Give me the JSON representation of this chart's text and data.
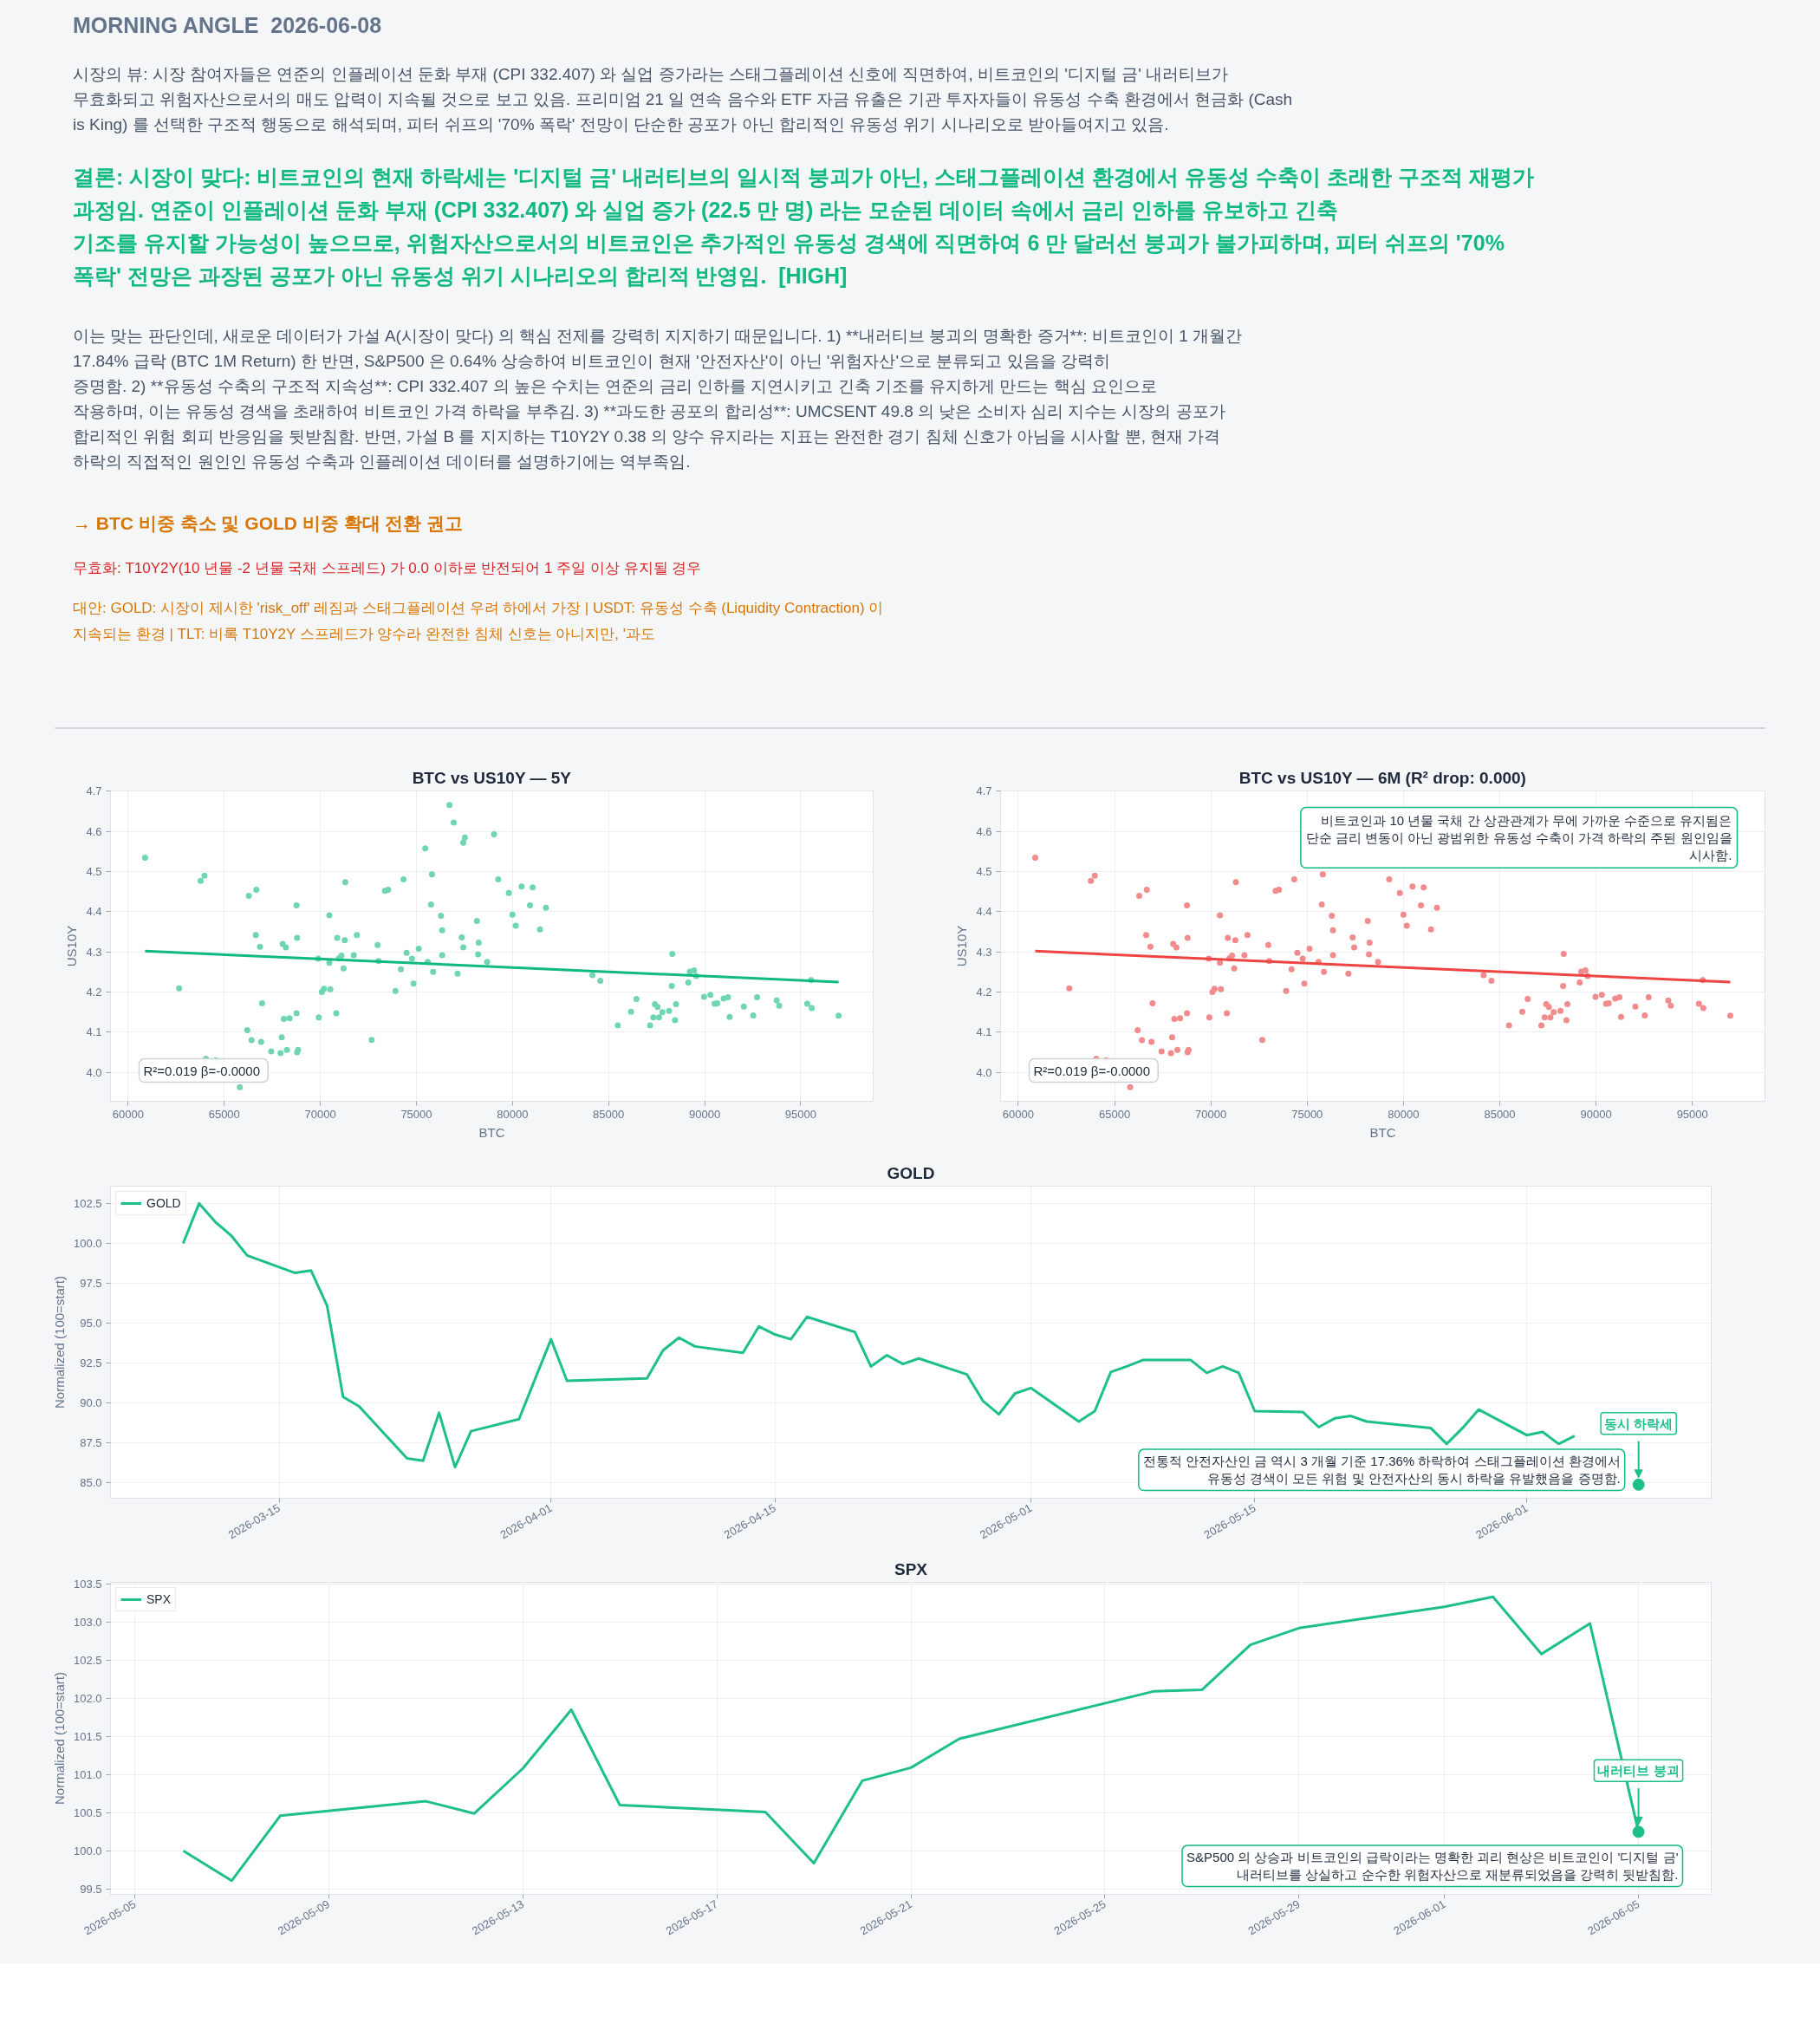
{
  "chart_data": [
    {
      "type": "other",
      "title": "MORNING ANGLE  2026-06-08",
      "annotations": [
        "시장의 뷰: 시장 참여자들은 연준의 인플레이션 둔화 부재 (CPI 332.407) 와 실업 증가라는 스태그플레이션 신호에 직면하여, 비트코인의 '디지털 금' 내러티브가 무효화되고 위험자산으로서의 매도 압력이 지속될 것으로 보고 있음. 프리미엄 21 일 연속 음수와 ETF 자금 유출은 기관 투자자들이 유동성 수축 환경에서 현금화 (Cash is King) 를 선택한 구조적 행동으로 해석되며, 피터 쉬프의 '70% 폭락' 전망이 단순한 공포가 아닌 합리적인 유동성 위기 시나리오로 받아들여지고 있음.",
        "결론: 시장이 맞다: 비트코인의 현재 하락세는 '디지털 금' 내러티브의 일시적 붕괴가 아닌, 스태그플레이션 환경에서 유동성 수축이 초래한 구조적 재평가 과정임. 연준이 인플레이션 둔화 부재 (CPI 332.407) 와 실업 증가 (22.5 만 명) 라는 모순된 데이터 속에서 금리 인하를 유보하고 긴축 기조를 유지할 가능성이 높으므로, 위험자산으로서의 비트코인은 추가적인 유동성 경색에 직면하여 6 만 달러선 붕괴가 불가피하며, 피터 쉬프의 '70% 폭락' 전망은 과장된 공포가 아닌 유동성 위기 시나리오의 합리적 반영임.  [HIGH]",
        "이는 맞는 판단인데, 새로운 데이터가 가설 A(시장이 맞다) 의 핵심 전제를 강력히 지지하기 때문입니다. 1) **내러티브 붕괴의 명확한 증거**: 비트코인이 1 개월간 17.84% 급락 (BTC 1M Return) 한 반면, S&P500 은 0.64% 상승하여 비트코인이 현재 '안전자산'이 아닌 '위험자산'으로 분류되고 있음을 강력히 증명함. 2) **유동성 수축의 구조적 지속성**: CPI 332.407 의 높은 수치는 연준의 금리 인하를 지연시키고 긴축 기조를 유지하게 만드는 핵심 요인으로 작용하며, 이는 유동성 경색을 초래하여 비트코인 가격 하락을 부추김. 3) **과도한 공포의 합리성**: UMCSENT 49.8 의 낮은 소비자 심리 지수는 시장의 공포가 합리적인 위험 회피 반응임을 뒷받침함. 반면, 가설 B 를 지지하는 T10Y2Y 0.38 의 양수 유지라는 지표는 완전한 경기 침체 신호가 아님을 시사할 뿐, 현재 가격 하락의 직접적인 원인인 유동성 수축과 인플레이션 데이터를 설명하기에는 역부족임.",
        "→ BTC 비중 축소 및 GOLD 비중 확대 전환 권고",
        "무효화: T10Y2Y(10 년물 -2 년물 국채 스프레드) 가 0.0 이하로 반전되어 1 주일 이상 유지될 경우",
        "대안: GOLD: 시장이 제시한 'risk_off' 레짐과 스태그플레이션 우려 하에서 가장 | USDT: 유동성 수축 (Liquidity Contraction) 이 지속되는 환경 | TLT: 비록 T10Y2Y 스프레드가 양수라 완전한 침체 신호는 아니지만, '과도"
      ]
    },
    {
      "type": "scatter",
      "title": "BTC vs US10Y — 5Y",
      "xlabel": "BTC",
      "ylabel": "US10Y",
      "xlim": [
        59080,
        98770
      ],
      "ylim": [
        3.928,
        4.701
      ],
      "xticks": [
        60000,
        65000,
        70000,
        75000,
        80000,
        85000,
        90000,
        95000
      ],
      "yticks": [
        {
          "value": 4.0,
          "label": "4.0"
        },
        4.1,
        4.2,
        4.3,
        4.4,
        4.5,
        4.6,
        4.7
      ],
      "grid": true,
      "series": [
        {
          "color": "#6fd6b1",
          "marker": "circle",
          "x": [
            60880,
            62650,
            63770,
            63970,
            64050,
            64570,
            65810,
            66200,
            66280,
            66420,
            66670,
            66640,
            66860,
            66920,
            66970,
            67440,
            67930,
            67990,
            68040,
            68100,
            68210,
            68260,
            68400,
            68760,
            68790,
            68760,
            68790,
            68840,
            69890,
            69920,
            70080,
            70190,
            70470,
            70470,
            70520,
            70830,
            70880,
            70960,
            71100,
            71210,
            71270,
            71300,
            71740,
            71900,
            72670,
            72980,
            73030,
            73360,
            73530,
            73910,
            74190,
            74330,
            74490,
            74770,
            74850,
            75120,
            75460,
            75590,
            75760,
            75810,
            75870,
            76280,
            76340,
            76340,
            76720,
            76940,
            77140,
            77360,
            77440,
            77520,
            77440,
            78150,
            78210,
            78240,
            78680,
            79040,
            79260,
            79810,
            80000,
            80170,
            80470,
            80910,
            81050,
            81430,
            81740,
            84160,
            84570,
            85480,
            86170,
            86450,
            87160,
            87330,
            87410,
            87550,
            87630,
            87800,
            88150,
            88290,
            88320,
            88460,
            88510,
            89150,
            89230,
            89450,
            89560,
            89970,
            90300,
            90520,
            90660,
            90990,
            91210,
            91300,
            92040,
            92530,
            92730,
            93750,
            93880,
            95340,
            95540,
            95570,
            96970
          ],
          "values": [
            4.535,
            4.209,
            4.477,
            4.49,
            4.034,
            4.03,
            3.963,
            4.105,
            4.44,
            4.08,
            4.455,
            4.342,
            4.313,
            4.076,
            4.172,
            4.052,
            4.048,
            4.087,
            4.32,
            4.133,
            4.311,
            4.056,
            4.135,
            4.416,
            4.335,
            4.147,
            4.05,
            4.056,
            4.283,
            4.137,
            4.2,
            4.208,
            4.391,
            4.273,
            4.207,
            4.147,
            4.335,
            4.284,
            4.291,
            4.259,
            4.329,
            4.474,
            4.292,
            4.342,
            4.081,
            4.317,
            4.277,
            4.452,
            4.455,
            4.203,
            4.257,
            4.481,
            4.298,
            4.283,
            4.221,
            4.308,
            4.558,
            4.275,
            4.418,
            4.493,
            4.25,
            4.39,
            4.354,
            4.292,
            4.666,
            4.622,
            4.246,
            4.336,
            4.572,
            4.585,
            4.311,
            4.377,
            4.294,
            4.323,
            4.275,
            4.593,
            4.481,
            4.447,
            4.393,
            4.365,
            4.463,
            4.416,
            4.461,
            4.356,
            4.41,
            4.242,
            4.228,
            4.117,
            4.151,
            4.183,
            4.117,
            4.137,
            4.17,
            4.163,
            4.137,
            4.15,
            4.153,
            4.215,
            4.295,
            4.13,
            4.17,
            4.224,
            4.251,
            4.254,
            4.24,
            4.188,
            4.193,
            4.171,
            4.172,
            4.184,
            4.187,
            4.138,
            4.164,
            4.142,
            4.187,
            4.179,
            4.166,
            4.171,
            4.23,
            4.16,
            4.141
          ]
        },
        {
          "type": "line",
          "color": "#10b981",
          "x": [
            60880,
            96970
          ],
          "values": [
            4.302,
            4.225
          ]
        }
      ],
      "annotations": [
        "R²=0.019  β=-0.0000"
      ]
    },
    {
      "type": "scatter",
      "title": "BTC vs US10Y — 6M (R² drop: 0.000)",
      "xlabel": "BTC",
      "ylabel": "US10Y",
      "xlim": [
        59080,
        98770
      ],
      "ylim": [
        3.928,
        4.701
      ],
      "xticks": [
        60000,
        65000,
        70000,
        75000,
        80000,
        85000,
        90000,
        95000
      ],
      "yticks": [
        {
          "value": 4.0,
          "label": "4.0"
        },
        4.1,
        4.2,
        4.3,
        4.4,
        4.5,
        4.6,
        4.7
      ],
      "grid": true,
      "series": [
        {
          "color": "#f28b8b",
          "marker": "circle",
          "x": [
            60880,
            62650,
            63770,
            63970,
            64050,
            64570,
            65810,
            66200,
            66280,
            66420,
            66670,
            66640,
            66860,
            66920,
            66970,
            67440,
            67930,
            67990,
            68040,
            68100,
            68210,
            68260,
            68400,
            68760,
            68790,
            68760,
            68790,
            68840,
            69890,
            69920,
            70080,
            70190,
            70470,
            70470,
            70520,
            70830,
            70880,
            70960,
            71100,
            71210,
            71270,
            71300,
            71740,
            71900,
            72670,
            72980,
            73030,
            73360,
            73530,
            73910,
            74190,
            74330,
            74490,
            74770,
            74850,
            75120,
            75590,
            75760,
            75810,
            75870,
            76280,
            76340,
            76340,
            77140,
            77360,
            77440,
            78150,
            78210,
            78240,
            78680,
            79260,
            79810,
            80000,
            80170,
            80470,
            80910,
            81050,
            81430,
            81740,
            84160,
            84570,
            85480,
            86170,
            86450,
            87160,
            87330,
            87410,
            87550,
            87630,
            87800,
            88150,
            88290,
            88320,
            88460,
            88510,
            89150,
            89230,
            89450,
            89560,
            89970,
            90300,
            90520,
            90660,
            90990,
            91210,
            91300,
            92040,
            92530,
            92730,
            93750,
            93880,
            95340,
            95540,
            95570,
            96970
          ],
          "values": [
            4.535,
            4.209,
            4.477,
            4.49,
            4.034,
            4.03,
            3.963,
            4.105,
            4.44,
            4.08,
            4.455,
            4.342,
            4.313,
            4.076,
            4.172,
            4.052,
            4.048,
            4.087,
            4.32,
            4.133,
            4.311,
            4.056,
            4.135,
            4.416,
            4.335,
            4.147,
            4.05,
            4.056,
            4.283,
            4.137,
            4.2,
            4.208,
            4.391,
            4.273,
            4.207,
            4.147,
            4.335,
            4.284,
            4.291,
            4.259,
            4.329,
            4.474,
            4.292,
            4.342,
            4.081,
            4.317,
            4.277,
            4.452,
            4.455,
            4.203,
            4.257,
            4.481,
            4.298,
            4.283,
            4.221,
            4.308,
            4.275,
            4.418,
            4.493,
            4.25,
            4.39,
            4.354,
            4.292,
            4.246,
            4.336,
            4.311,
            4.377,
            4.294,
            4.323,
            4.275,
            4.481,
            4.447,
            4.393,
            4.365,
            4.463,
            4.416,
            4.461,
            4.356,
            4.41,
            4.242,
            4.228,
            4.117,
            4.151,
            4.183,
            4.117,
            4.137,
            4.17,
            4.163,
            4.137,
            4.15,
            4.153,
            4.215,
            4.295,
            4.13,
            4.17,
            4.224,
            4.251,
            4.254,
            4.24,
            4.188,
            4.193,
            4.171,
            4.172,
            4.184,
            4.187,
            4.138,
            4.164,
            4.142,
            4.187,
            4.179,
            4.166,
            4.171,
            4.23,
            4.16,
            4.141
          ]
        },
        {
          "type": "line",
          "color": "#ef4444",
          "x": [
            60880,
            96970
          ],
          "values": [
            4.302,
            4.225
          ]
        }
      ],
      "annotations": [
        "R²=0.019  β=-0.0000",
        "비트코인과 10 년물 국채 간 상관관계가 무에 가까운 수준으로 유지됨은 단순 금리 변동이 아닌 광범위한 유동성 수축이 가격 하락의 주된 원인임을 시사함."
      ]
    },
    {
      "type": "line",
      "title": "GOLD",
      "ylabel": "Normalized (100=start)",
      "xlim": [
        "2026-03-04T11:00",
        "2026-06-12T13:00"
      ],
      "ylim": [
        84.05,
        103.58
      ],
      "xticks": [
        "2026-03-15",
        "2026-04-01",
        "2026-04-15",
        "2026-05-01",
        "2026-05-15",
        "2026-06-01"
      ],
      "yticks": [
        {
          "value": 85.0,
          "label": "85.0"
        },
        87.5,
        {
          "value": 90.0,
          "label": "90.0"
        },
        92.5,
        {
          "value": 95.0,
          "label": "95.0"
        },
        97.5,
        {
          "value": 100.0,
          "label": "100.0"
        },
        102.5
      ],
      "grid": true,
      "legend": "top left",
      "x": [
        "2026-03-09",
        "2026-03-10",
        "2026-03-11",
        "2026-03-12",
        "2026-03-13",
        "2026-03-16",
        "2026-03-17",
        "2026-03-18",
        "2026-03-19",
        "2026-03-20",
        "2026-03-23",
        "2026-03-24",
        "2026-03-25",
        "2026-03-26",
        "2026-03-27",
        "2026-03-30",
        "2026-03-31",
        "2026-04-01",
        "2026-04-02",
        "2026-04-07",
        "2026-04-08",
        "2026-04-09",
        "2026-04-10",
        "2026-04-13",
        "2026-04-14",
        "2026-04-15",
        "2026-04-16",
        "2026-04-17",
        "2026-04-20",
        "2026-04-21",
        "2026-04-22",
        "2026-04-23",
        "2026-04-24",
        "2026-04-27",
        "2026-04-28",
        "2026-04-29",
        "2026-04-30",
        "2026-05-01",
        "2026-05-04",
        "2026-05-05",
        "2026-05-06",
        "2026-05-07",
        "2026-05-08",
        "2026-05-11",
        "2026-05-12",
        "2026-05-13",
        "2026-05-14",
        "2026-05-15",
        "2026-05-18",
        "2026-05-19",
        "2026-05-20",
        "2026-05-21",
        "2026-05-22",
        "2026-05-26",
        "2026-05-27",
        "2026-05-28",
        "2026-05-29",
        "2026-06-01",
        "2026-06-02",
        "2026-06-03",
        "2026-06-04"
      ],
      "series": [
        {
          "name": "GOLD",
          "color": "#1dbf8a",
          "values": [
            100.0,
            102.5,
            101.35,
            100.5,
            99.25,
            98.15,
            98.3,
            96.1,
            90.4,
            89.8,
            86.55,
            86.4,
            89.4,
            86.0,
            88.25,
            89.0,
            91.5,
            94.0,
            91.4,
            91.55,
            93.3,
            94.1,
            93.55,
            93.15,
            94.8,
            94.3,
            94.0,
            95.4,
            94.45,
            92.3,
            93.0,
            92.45,
            92.8,
            91.8,
            90.15,
            89.3,
            90.6,
            90.95,
            88.85,
            89.5,
            91.95,
            92.3,
            92.7,
            92.7,
            91.9,
            92.3,
            91.9,
            89.5,
            89.45,
            88.5,
            89.05,
            89.2,
            88.85,
            88.45,
            87.45,
            88.45,
            89.6,
            88.0,
            88.2,
            87.45,
            87.95
          ]
        }
      ],
      "annotations": [
        {
          "text": "동시 하락세",
          "x": "2026-06-08",
          "y": 84.9
        },
        "전통적 안전자산인 금 역시 3 개월 기준 17.36% 하락하여 스태그플레이션 환경에서 유동성 경색이 모든 위험 및 안전자산의 동시 하락을 유발했음을 증명함."
      ]
    },
    {
      "type": "line",
      "title": "SPX",
      "ylabel": "Normalized (100=start)",
      "xlim": [
        "2026-05-04T12:00",
        "2026-06-06T12:00"
      ],
      "ylim": [
        99.43,
        103.52
      ],
      "xticks": [
        "2026-05-05",
        "2026-05-09",
        "2026-05-13",
        "2026-05-17",
        "2026-05-21",
        "2026-05-25",
        "2026-05-29",
        "2026-06-01",
        "2026-06-05"
      ],
      "yticks": [
        99.5,
        {
          "value": 100.0,
          "label": "100.0"
        },
        100.5,
        {
          "value": 101.0,
          "label": "101.0"
        },
        101.5,
        {
          "value": 102.0,
          "label": "102.0"
        },
        102.5,
        {
          "value": 103.0,
          "label": "103.0"
        },
        103.5
      ],
      "grid": true,
      "legend": "top left",
      "x": [
        "2026-05-06",
        "2026-05-07",
        "2026-05-08",
        "2026-05-11",
        "2026-05-12",
        "2026-05-13",
        "2026-05-14",
        "2026-05-15",
        "2026-05-18",
        "2026-05-19",
        "2026-05-20",
        "2026-05-21",
        "2026-05-22",
        "2026-05-26",
        "2026-05-27",
        "2026-05-28",
        "2026-05-29",
        "2026-06-01",
        "2026-06-02",
        "2026-06-03",
        "2026-06-04",
        "2026-06-05"
      ],
      "series": [
        {
          "name": "SPX",
          "color": "#1dbf8a",
          "values": [
            100.0,
            99.61,
            100.46,
            100.65,
            100.49,
            101.08,
            101.85,
            100.6,
            100.51,
            99.84,
            100.92,
            101.09,
            101.47,
            102.09,
            102.11,
            102.7,
            102.92,
            103.2,
            103.33,
            102.58,
            102.98,
            100.25
          ]
        }
      ],
      "annotations": [
        {
          "text": "내러티브 붕괴",
          "x": "2026-06-05",
          "y": 100.25
        },
        "S&P500 의 상승과 비트코인의 급락이라는 명확한 괴리 현상은 비트코인이 '디지털 금' 내러티브를 상실하고 순수한 위험자산으로 재분류되었음을 강력히 뒷받침함."
      ]
    }
  ]
}
